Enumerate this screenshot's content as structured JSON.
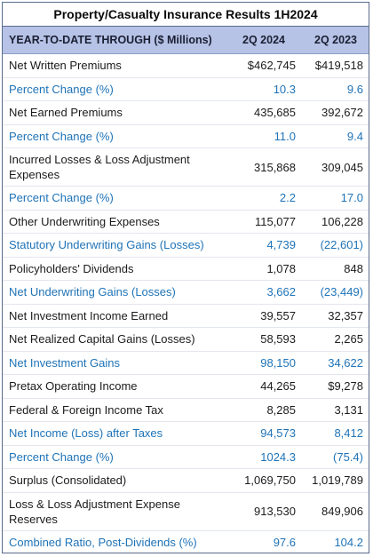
{
  "title": "Property/Casualty Insurance Results 1H2024",
  "header": {
    "label": "YEAR-TO-DATE THROUGH ($ Millions)",
    "col1": "2Q 2024",
    "col2": "2Q 2023"
  },
  "rows": [
    {
      "label": "Net Written Premiums",
      "v1": "$462,745",
      "v2": "$419,518",
      "blue": false
    },
    {
      "label": "Percent Change (%)",
      "v1": "10.3",
      "v2": "9.6",
      "blue": true
    },
    {
      "label": "Net Earned Premiums",
      "v1": "435,685",
      "v2": "392,672",
      "blue": false
    },
    {
      "label": "Percent Change (%)",
      "v1": "11.0",
      "v2": "9.4",
      "blue": true
    },
    {
      "label": "Incurred Losses & Loss Adjustment Expenses",
      "v1": "315,868",
      "v2": "309,045",
      "blue": false
    },
    {
      "label": "Percent Change (%)",
      "v1": "2.2",
      "v2": "17.0",
      "blue": true
    },
    {
      "label": "Other Underwriting Expenses",
      "v1": "115,077",
      "v2": "106,228",
      "blue": false
    },
    {
      "label": "Statutory Underwriting Gains (Losses)",
      "v1": "4,739",
      "v2": "(22,601)",
      "blue": true
    },
    {
      "label": "Policyholders' Dividends",
      "v1": "1,078",
      "v2": "848",
      "blue": false
    },
    {
      "label": "Net Underwriting Gains (Losses)",
      "v1": "3,662",
      "v2": "(23,449)",
      "blue": true
    },
    {
      "label": "Net Investment Income Earned",
      "v1": "39,557",
      "v2": "32,357",
      "blue": false
    },
    {
      "label": "Net Realized Capital Gains (Losses)",
      "v1": "58,593",
      "v2": "2,265",
      "blue": false
    },
    {
      "label": "Net Investment Gains",
      "v1": "98,150",
      "v2": "34,622",
      "blue": true
    },
    {
      "label": "Pretax Operating Income",
      "v1": "44,265",
      "v2": "$9,278",
      "blue": false
    },
    {
      "label": "Federal & Foreign Income Tax",
      "v1": "8,285",
      "v2": "3,131",
      "blue": false
    },
    {
      "label": "Net Income (Loss) after Taxes",
      "v1": "94,573",
      "v2": "8,412",
      "blue": true
    },
    {
      "label": "Percent Change (%)",
      "v1": "1024.3",
      "v2": "(75.4)",
      "blue": true
    },
    {
      "label": "Surplus (Consolidated)",
      "v1": "1,069,750",
      "v2": "1,019,789",
      "blue": false
    },
    {
      "label": "Loss & Loss Adjustment Expense Reserves",
      "v1": "913,530",
      "v2": "849,906",
      "blue": false
    },
    {
      "label": "Combined Ratio, Post-Dividends (%)",
      "v1": "97.6",
      "v2": "104.2",
      "blue": true
    }
  ],
  "colors": {
    "header_bg": "#b7c3e6",
    "blue_text": "#1f73b7",
    "border": "#5a6b8c"
  }
}
